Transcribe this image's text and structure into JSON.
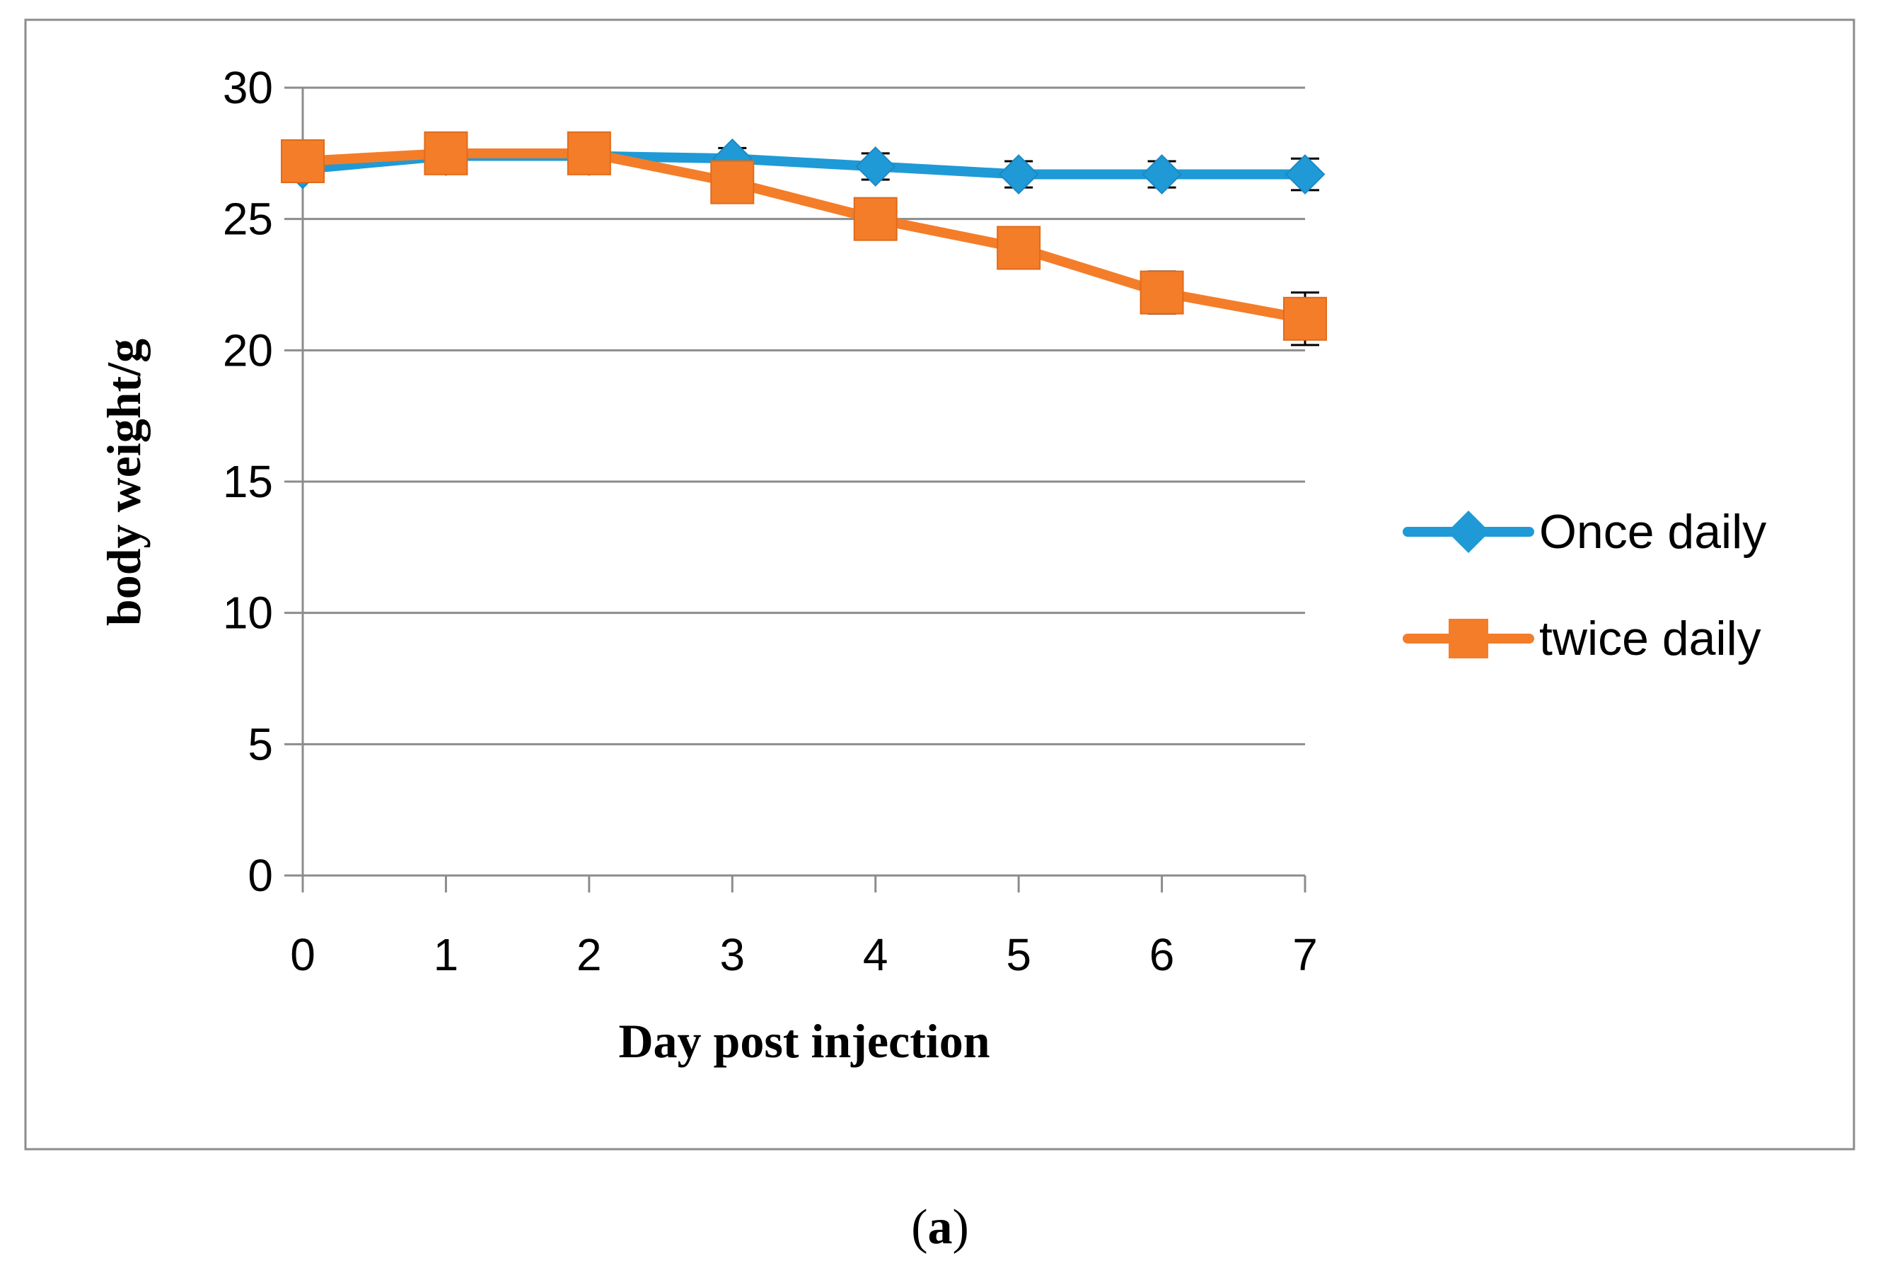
{
  "chart_data": {
    "type": "line",
    "title": "",
    "xlabel": "Day post injection",
    "ylabel": "body weight/g",
    "x": [
      0,
      1,
      2,
      3,
      4,
      5,
      6,
      7
    ],
    "x_tick_labels": [
      "0",
      "1",
      "2",
      "3",
      "4",
      "5",
      "6",
      "7"
    ],
    "ylim": [
      0,
      30
    ],
    "y_ticks": [
      0,
      5,
      10,
      15,
      20,
      25,
      30
    ],
    "y_tick_labels": [
      "0",
      "5",
      "10",
      "15",
      "20",
      "25",
      "30"
    ],
    "grid": true,
    "legend_position": "right",
    "series": [
      {
        "name": "Once daily",
        "color": "#1f9ad6",
        "marker": "diamond",
        "values": [
          26.9,
          27.4,
          27.4,
          27.3,
          27.0,
          26.7,
          26.7,
          26.7
        ],
        "errors": [
          0.3,
          0.3,
          0.3,
          0.4,
          0.5,
          0.5,
          0.5,
          0.6
        ]
      },
      {
        "name": "twice daily",
        "color": "#f47d2a",
        "marker": "square",
        "values": [
          27.2,
          27.5,
          27.5,
          26.4,
          25.0,
          23.9,
          22.2,
          21.2
        ],
        "errors": [
          0.3,
          0.3,
          0.3,
          0.4,
          0.4,
          0.4,
          0.8,
          1.0
        ]
      }
    ],
    "caption_prefix": "(",
    "caption_letter": "a",
    "caption_suffix": ")"
  }
}
